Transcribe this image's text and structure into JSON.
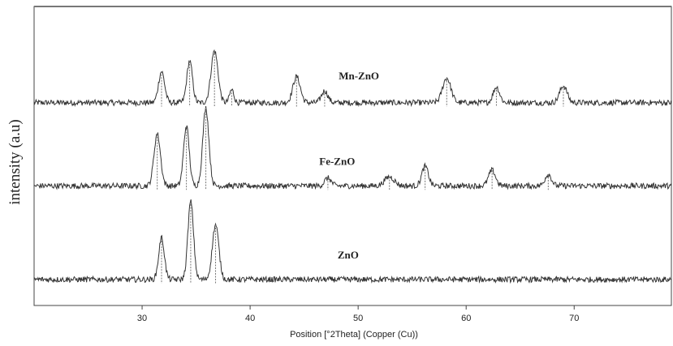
{
  "chart_data": {
    "type": "line",
    "xlabel": "Position [°2Theta] (Copper (Cu))",
    "ylabel": "intensity (a.u)",
    "xlim": [
      20,
      79
    ],
    "x_ticks": [
      30,
      40,
      50,
      60,
      70
    ],
    "grid": false,
    "series": [
      {
        "name": "Mn-ZnO",
        "baseline": 7.8,
        "peaks": [
          {
            "x": 31.8,
            "height": 1.2,
            "width": 0.28
          },
          {
            "x": 34.4,
            "height": 1.6,
            "width": 0.26
          },
          {
            "x": 36.7,
            "height": 2.0,
            "width": 0.32
          },
          {
            "x": 38.3,
            "height": 0.5,
            "width": 0.2
          },
          {
            "x": 44.3,
            "height": 1.0,
            "width": 0.34
          },
          {
            "x": 46.9,
            "height": 0.45,
            "width": 0.3
          },
          {
            "x": 58.2,
            "height": 0.95,
            "width": 0.38
          },
          {
            "x": 62.8,
            "height": 0.6,
            "width": 0.3
          },
          {
            "x": 69.0,
            "height": 0.65,
            "width": 0.34
          }
        ]
      },
      {
        "name": "Fe-ZnO",
        "baseline": 4.6,
        "peaks": [
          {
            "x": 31.4,
            "height": 2.0,
            "width": 0.3
          },
          {
            "x": 34.1,
            "height": 2.3,
            "width": 0.26
          },
          {
            "x": 35.9,
            "height": 3.0,
            "width": 0.28
          },
          {
            "x": 47.2,
            "height": 0.3,
            "width": 0.3
          },
          {
            "x": 52.9,
            "height": 0.35,
            "width": 0.45
          },
          {
            "x": 56.2,
            "height": 0.75,
            "width": 0.3
          },
          {
            "x": 62.4,
            "height": 0.6,
            "width": 0.32
          },
          {
            "x": 67.6,
            "height": 0.45,
            "width": 0.3
          }
        ]
      },
      {
        "name": "ZnO",
        "baseline": 1.0,
        "peaks": [
          {
            "x": 31.8,
            "height": 1.6,
            "width": 0.26
          },
          {
            "x": 34.5,
            "height": 3.0,
            "width": 0.26
          },
          {
            "x": 36.8,
            "height": 2.1,
            "width": 0.3
          }
        ]
      }
    ],
    "annotations": [
      {
        "text": "Mn-ZnO",
        "x": 48.2,
        "y": 8.7
      },
      {
        "text": "Fe-ZnO",
        "x": 46.4,
        "y": 5.4
      },
      {
        "text": "ZnO",
        "x": 48.1,
        "y": 1.8
      }
    ]
  }
}
